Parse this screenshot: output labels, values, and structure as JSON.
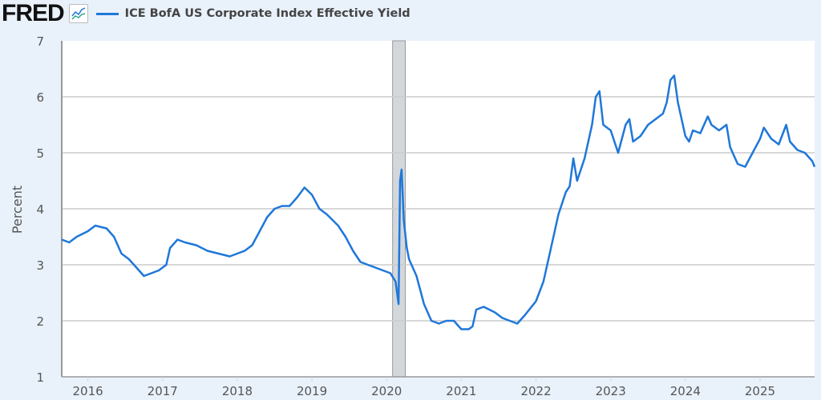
{
  "header": {
    "logo_text": "FRED",
    "legend_label": "ICE BofA US Corporate Index Effective Yield"
  },
  "colors": {
    "series": "#1f77d9",
    "recession": "#d3d7dc",
    "grid": "#cccccc",
    "background": "#e9f1fa"
  },
  "chart_data": {
    "type": "line",
    "title": "ICE BofA US Corporate Index Effective Yield",
    "xlabel": "",
    "ylabel": "Percent",
    "xlim": [
      2015.65,
      2025.73
    ],
    "ylim": [
      1,
      7
    ],
    "yticks": [
      "1",
      "2",
      "3",
      "4",
      "5",
      "6",
      "7"
    ],
    "xticks": [
      "2016",
      "2017",
      "2018",
      "2019",
      "2020",
      "2021",
      "2022",
      "2023",
      "2024",
      "2025"
    ],
    "grid": true,
    "legend": "top-left",
    "recessions": [
      [
        2020.08,
        2020.25
      ]
    ],
    "series": [
      {
        "name": "ICE BofA US Corporate Index Effective Yield",
        "points": [
          [
            2015.65,
            3.45
          ],
          [
            2015.75,
            3.4
          ],
          [
            2015.85,
            3.5
          ],
          [
            2016.0,
            3.6
          ],
          [
            2016.1,
            3.7
          ],
          [
            2016.25,
            3.65
          ],
          [
            2016.35,
            3.5
          ],
          [
            2016.45,
            3.2
          ],
          [
            2016.55,
            3.1
          ],
          [
            2016.65,
            2.95
          ],
          [
            2016.75,
            2.8
          ],
          [
            2016.85,
            2.85
          ],
          [
            2016.95,
            2.9
          ],
          [
            2017.05,
            3.0
          ],
          [
            2017.1,
            3.3
          ],
          [
            2017.2,
            3.45
          ],
          [
            2017.3,
            3.4
          ],
          [
            2017.45,
            3.35
          ],
          [
            2017.6,
            3.25
          ],
          [
            2017.75,
            3.2
          ],
          [
            2017.9,
            3.15
          ],
          [
            2018.0,
            3.2
          ],
          [
            2018.1,
            3.25
          ],
          [
            2018.2,
            3.35
          ],
          [
            2018.3,
            3.6
          ],
          [
            2018.4,
            3.85
          ],
          [
            2018.5,
            4.0
          ],
          [
            2018.6,
            4.05
          ],
          [
            2018.7,
            4.05
          ],
          [
            2018.8,
            4.2
          ],
          [
            2018.9,
            4.38
          ],
          [
            2019.0,
            4.25
          ],
          [
            2019.1,
            4.0
          ],
          [
            2019.2,
            3.9
          ],
          [
            2019.35,
            3.7
          ],
          [
            2019.45,
            3.5
          ],
          [
            2019.55,
            3.25
          ],
          [
            2019.65,
            3.05
          ],
          [
            2019.75,
            3.0
          ],
          [
            2019.85,
            2.95
          ],
          [
            2019.95,
            2.9
          ],
          [
            2020.05,
            2.85
          ],
          [
            2020.12,
            2.7
          ],
          [
            2020.16,
            2.3
          ],
          [
            2020.18,
            4.5
          ],
          [
            2020.2,
            4.7
          ],
          [
            2020.23,
            3.8
          ],
          [
            2020.27,
            3.3
          ],
          [
            2020.3,
            3.1
          ],
          [
            2020.4,
            2.8
          ],
          [
            2020.5,
            2.3
          ],
          [
            2020.6,
            2.0
          ],
          [
            2020.7,
            1.95
          ],
          [
            2020.8,
            2.0
          ],
          [
            2020.9,
            2.0
          ],
          [
            2021.0,
            1.85
          ],
          [
            2021.1,
            1.85
          ],
          [
            2021.15,
            1.9
          ],
          [
            2021.2,
            2.2
          ],
          [
            2021.3,
            2.25
          ],
          [
            2021.45,
            2.15
          ],
          [
            2021.55,
            2.05
          ],
          [
            2021.65,
            2.0
          ],
          [
            2021.75,
            1.95
          ],
          [
            2021.85,
            2.1
          ],
          [
            2022.0,
            2.35
          ],
          [
            2022.1,
            2.7
          ],
          [
            2022.2,
            3.3
          ],
          [
            2022.3,
            3.9
          ],
          [
            2022.4,
            4.3
          ],
          [
            2022.45,
            4.4
          ],
          [
            2022.5,
            4.9
          ],
          [
            2022.55,
            4.5
          ],
          [
            2022.65,
            4.9
          ],
          [
            2022.75,
            5.5
          ],
          [
            2022.8,
            6.0
          ],
          [
            2022.85,
            6.1
          ],
          [
            2022.9,
            5.5
          ],
          [
            2023.0,
            5.4
          ],
          [
            2023.1,
            5.0
          ],
          [
            2023.2,
            5.5
          ],
          [
            2023.25,
            5.6
          ],
          [
            2023.3,
            5.2
          ],
          [
            2023.4,
            5.3
          ],
          [
            2023.5,
            5.5
          ],
          [
            2023.6,
            5.6
          ],
          [
            2023.7,
            5.7
          ],
          [
            2023.75,
            5.9
          ],
          [
            2023.8,
            6.3
          ],
          [
            2023.85,
            6.38
          ],
          [
            2023.9,
            5.9
          ],
          [
            2024.0,
            5.3
          ],
          [
            2024.05,
            5.2
          ],
          [
            2024.1,
            5.4
          ],
          [
            2024.2,
            5.35
          ],
          [
            2024.3,
            5.65
          ],
          [
            2024.35,
            5.5
          ],
          [
            2024.45,
            5.4
          ],
          [
            2024.55,
            5.5
          ],
          [
            2024.6,
            5.1
          ],
          [
            2024.7,
            4.8
          ],
          [
            2024.8,
            4.75
          ],
          [
            2024.9,
            5.0
          ],
          [
            2025.0,
            5.25
          ],
          [
            2025.05,
            5.45
          ],
          [
            2025.15,
            5.25
          ],
          [
            2025.25,
            5.15
          ],
          [
            2025.35,
            5.5
          ],
          [
            2025.4,
            5.2
          ],
          [
            2025.5,
            5.05
          ],
          [
            2025.6,
            5.0
          ],
          [
            2025.7,
            4.85
          ],
          [
            2025.73,
            4.75
          ]
        ]
      }
    ]
  }
}
